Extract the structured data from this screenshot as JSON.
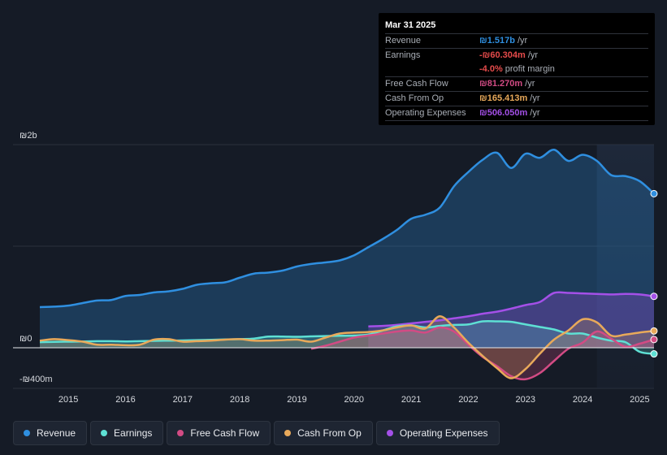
{
  "colors": {
    "revenue": "#2f8fe0",
    "earnings": "#5ee0d4",
    "fcf": "#d24b84",
    "cfo": "#e8a95a",
    "opex": "#a450e8",
    "background": "#151b26"
  },
  "tooltip": {
    "date": "Mar 31 2025",
    "rows": [
      {
        "label": "Revenue",
        "value": "₪1.517b",
        "unit": "/yr",
        "color": "#2f8fe0"
      },
      {
        "label": "Earnings",
        "value": "-₪60.304m",
        "unit": "/yr",
        "color": "#e64b4b"
      },
      {
        "label": "",
        "value": "-4.0%",
        "unit": "profit margin",
        "color": "#e64b4b"
      },
      {
        "label": "Free Cash Flow",
        "value": "₪81.270m",
        "unit": "/yr",
        "color": "#d24b84"
      },
      {
        "label": "Cash From Op",
        "value": "₪165.413m",
        "unit": "/yr",
        "color": "#e8a95a"
      },
      {
        "label": "Operating Expenses",
        "value": "₪506.050m",
        "unit": "/yr",
        "color": "#a450e8"
      }
    ]
  },
  "legend": [
    {
      "label": "Revenue",
      "color": "#2f8fe0"
    },
    {
      "label": "Earnings",
      "color": "#5ee0d4"
    },
    {
      "label": "Free Cash Flow",
      "color": "#d24b84"
    },
    {
      "label": "Cash From Op",
      "color": "#e8a95a"
    },
    {
      "label": "Operating Expenses",
      "color": "#a450e8"
    }
  ],
  "chart_data": {
    "type": "area",
    "title": "",
    "currency_unit": "ILS millions",
    "ylim": [
      -400,
      2000
    ],
    "y_tick_labels": [
      "₪2b",
      "₪0",
      "-₪400m"
    ],
    "x_tick_labels": [
      "2015",
      "2016",
      "2017",
      "2018",
      "2019",
      "2020",
      "2021",
      "2022",
      "2023",
      "2024",
      "2025"
    ],
    "x_ticks": [
      2015,
      2016,
      2017,
      2018,
      2019,
      2020,
      2021,
      2022,
      2023,
      2024,
      2025
    ],
    "xlim": [
      2014.5,
      2025.25
    ],
    "forecast_shade_start": 2024.25,
    "series": [
      {
        "name": "Revenue",
        "key": "revenue",
        "fill": true,
        "x": [
          2014.5,
          2014.75,
          2015.0,
          2015.25,
          2015.5,
          2015.75,
          2016.0,
          2016.25,
          2016.5,
          2016.75,
          2017.0,
          2017.25,
          2017.5,
          2017.75,
          2018.0,
          2018.25,
          2018.5,
          2018.75,
          2019.0,
          2019.25,
          2019.5,
          2019.75,
          2020.0,
          2020.25,
          2020.5,
          2020.75,
          2021.0,
          2021.25,
          2021.5,
          2021.75,
          2022.0,
          2022.25,
          2022.5,
          2022.75,
          2023.0,
          2023.25,
          2023.5,
          2023.75,
          2024.0,
          2024.25,
          2024.5,
          2024.75,
          2025.0,
          2025.25
        ],
        "values": [
          400,
          405,
          415,
          440,
          465,
          470,
          510,
          520,
          545,
          555,
          580,
          620,
          635,
          645,
          690,
          730,
          740,
          760,
          800,
          825,
          840,
          860,
          910,
          990,
          1070,
          1160,
          1270,
          1310,
          1380,
          1590,
          1730,
          1850,
          1920,
          1770,
          1910,
          1870,
          1950,
          1840,
          1900,
          1840,
          1700,
          1690,
          1640,
          1517
        ]
      },
      {
        "name": "Operating Expenses",
        "key": "opex",
        "fill": true,
        "x": [
          2020.25,
          2020.5,
          2020.75,
          2021.0,
          2021.25,
          2021.5,
          2021.75,
          2022.0,
          2022.25,
          2022.5,
          2022.75,
          2023.0,
          2023.25,
          2023.5,
          2023.75,
          2024.0,
          2024.25,
          2024.5,
          2024.75,
          2025.0,
          2025.25
        ],
        "values": [
          210,
          215,
          225,
          240,
          255,
          270,
          290,
          310,
          335,
          355,
          385,
          420,
          450,
          540,
          540,
          535,
          530,
          525,
          530,
          525,
          506.05
        ]
      },
      {
        "name": "Earnings",
        "key": "earnings",
        "fill": true,
        "x": [
          2014.5,
          2014.75,
          2015.0,
          2015.25,
          2015.5,
          2015.75,
          2016.0,
          2016.25,
          2016.5,
          2016.75,
          2017.0,
          2017.25,
          2017.5,
          2017.75,
          2018.0,
          2018.25,
          2018.5,
          2018.75,
          2019.0,
          2019.25,
          2019.5,
          2019.75,
          2020.0,
          2020.25,
          2020.5,
          2020.75,
          2021.0,
          2021.25,
          2021.5,
          2021.75,
          2022.0,
          2022.25,
          2022.5,
          2022.75,
          2023.0,
          2023.25,
          2023.5,
          2023.75,
          2024.0,
          2024.25,
          2024.5,
          2024.75,
          2025.0,
          2025.25
        ],
        "values": [
          55,
          58,
          60,
          62,
          65,
          65,
          62,
          65,
          68,
          70,
          72,
          75,
          78,
          82,
          85,
          90,
          110,
          110,
          108,
          112,
          115,
          118,
          120,
          130,
          170,
          210,
          220,
          200,
          215,
          225,
          230,
          260,
          260,
          255,
          230,
          205,
          180,
          140,
          140,
          100,
          70,
          55,
          -40,
          -60.3
        ]
      },
      {
        "name": "Free Cash Flow",
        "key": "fcf",
        "fill": true,
        "x": [
          2019.25,
          2019.5,
          2019.75,
          2020.0,
          2020.25,
          2020.5,
          2020.75,
          2021.0,
          2021.25,
          2021.5,
          2021.75,
          2022.0,
          2022.25,
          2022.5,
          2022.75,
          2023.0,
          2023.25,
          2023.5,
          2023.75,
          2024.0,
          2024.25,
          2024.5,
          2024.75,
          2025.0,
          2025.25
        ],
        "values": [
          -10,
          20,
          60,
          100,
          120,
          140,
          160,
          170,
          150,
          200,
          160,
          30,
          -90,
          -180,
          -280,
          -310,
          -250,
          -130,
          -10,
          50,
          160,
          90,
          10,
          40,
          81.27
        ]
      },
      {
        "name": "Cash From Op",
        "key": "cfo",
        "fill": true,
        "x": [
          2014.5,
          2014.75,
          2015.0,
          2015.25,
          2015.5,
          2015.75,
          2016.0,
          2016.25,
          2016.5,
          2016.75,
          2017.0,
          2017.25,
          2017.5,
          2017.75,
          2018.0,
          2018.25,
          2018.5,
          2018.75,
          2019.0,
          2019.25,
          2019.5,
          2019.75,
          2020.0,
          2020.25,
          2020.5,
          2020.75,
          2021.0,
          2021.25,
          2021.5,
          2021.75,
          2022.0,
          2022.25,
          2022.5,
          2022.75,
          2023.0,
          2023.25,
          2023.5,
          2023.75,
          2024.0,
          2024.25,
          2024.5,
          2024.75,
          2025.0,
          2025.25
        ],
        "values": [
          70,
          85,
          75,
          60,
          30,
          30,
          25,
          30,
          80,
          85,
          60,
          65,
          70,
          80,
          85,
          70,
          70,
          75,
          80,
          60,
          100,
          140,
          150,
          155,
          170,
          200,
          220,
          190,
          310,
          200,
          50,
          -80,
          -200,
          -300,
          -210,
          -60,
          80,
          170,
          280,
          250,
          120,
          130,
          150,
          165.41
        ]
      }
    ]
  }
}
